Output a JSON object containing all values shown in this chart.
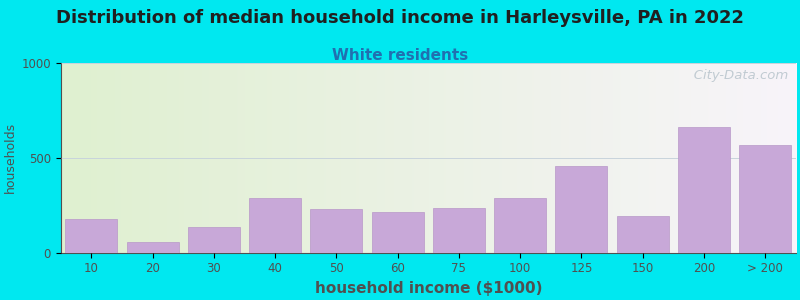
{
  "title": "Distribution of median household income in Harleysville, PA in 2022",
  "subtitle": "White residents",
  "xlabel": "household income ($1000)",
  "ylabel": "households",
  "categories": [
    "10",
    "20",
    "30",
    "40",
    "50",
    "60",
    "75",
    "100",
    "125",
    "150",
    "200",
    "> 200"
  ],
  "values": [
    175,
    55,
    135,
    290,
    230,
    215,
    235,
    290,
    455,
    195,
    665,
    570
  ],
  "ylim": [
    0,
    1000
  ],
  "yticks": [
    0,
    500,
    1000
  ],
  "bar_color": "#c8a8d8",
  "bar_edge_color": "#b898c8",
  "background_outer": "#00e8f0",
  "plot_bg_left": "#dff0d0",
  "plot_bg_right": "#f8f4fa",
  "title_fontsize": 13,
  "subtitle_fontsize": 11,
  "subtitle_color": "#2070b0",
  "watermark_text": "   City-Data.com",
  "watermark_color": "#b8c4cc",
  "grid_color": "#c8d4dc",
  "axis_color": "#505050",
  "tick_fontsize": 8.5,
  "xlabel_fontsize": 11,
  "ylabel_fontsize": 9
}
